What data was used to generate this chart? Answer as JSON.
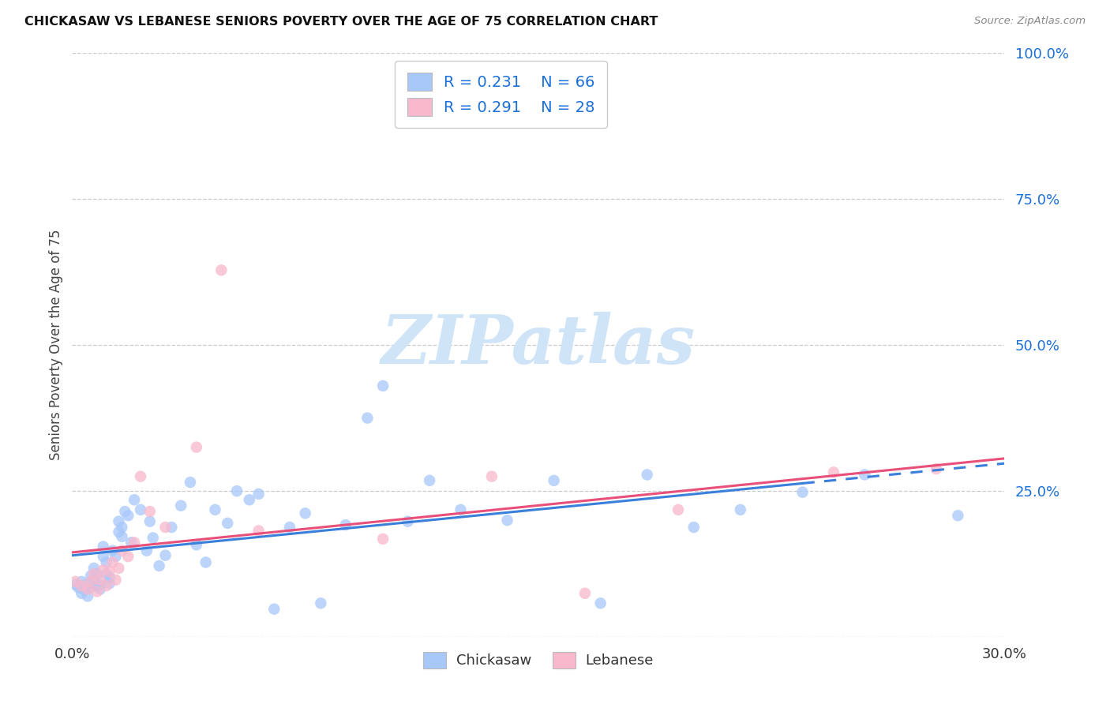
{
  "title": "CHICKASAW VS LEBANESE SENIORS POVERTY OVER THE AGE OF 75 CORRELATION CHART",
  "source": "Source: ZipAtlas.com",
  "ylabel": "Seniors Poverty Over the Age of 75",
  "xlim": [
    0.0,
    0.3
  ],
  "ylim": [
    0.0,
    1.0
  ],
  "yticks": [
    0.0,
    0.25,
    0.5,
    0.75,
    1.0
  ],
  "ytick_labels": [
    "",
    "25.0%",
    "50.0%",
    "75.0%",
    "100.0%"
  ],
  "xticks": [
    0.0,
    0.3
  ],
  "xtick_labels": [
    "0.0%",
    "30.0%"
  ],
  "chickasaw_color": "#a8c8fa",
  "lebanese_color": "#f9b8cc",
  "trend_chickasaw_color": "#3a7fd9",
  "trend_lebanese_color": "#e8507a",
  "r_chickasaw": 0.231,
  "n_chickasaw": 66,
  "r_lebanese": 0.291,
  "n_lebanese": 28,
  "legend_color": "#1a6fd8",
  "watermark_color": "#d0e4f8",
  "trend_dash_start_x": 0.235,
  "chickasaw_x": [
    0.001,
    0.002,
    0.003,
    0.003,
    0.004,
    0.005,
    0.005,
    0.006,
    0.006,
    0.007,
    0.007,
    0.008,
    0.008,
    0.009,
    0.009,
    0.01,
    0.01,
    0.011,
    0.011,
    0.012,
    0.012,
    0.013,
    0.014,
    0.015,
    0.015,
    0.016,
    0.016,
    0.017,
    0.018,
    0.019,
    0.02,
    0.022,
    0.024,
    0.025,
    0.026,
    0.028,
    0.03,
    0.032,
    0.035,
    0.038,
    0.04,
    0.043,
    0.046,
    0.05,
    0.053,
    0.057,
    0.06,
    0.065,
    0.07,
    0.075,
    0.08,
    0.088,
    0.095,
    0.1,
    0.108,
    0.115,
    0.125,
    0.14,
    0.155,
    0.17,
    0.185,
    0.2,
    0.215,
    0.235,
    0.255,
    0.285
  ],
  "chickasaw_y": [
    0.09,
    0.085,
    0.095,
    0.075,
    0.08,
    0.07,
    0.09,
    0.085,
    0.105,
    0.1,
    0.118,
    0.088,
    0.108,
    0.09,
    0.082,
    0.138,
    0.155,
    0.108,
    0.128,
    0.092,
    0.102,
    0.148,
    0.138,
    0.18,
    0.198,
    0.172,
    0.188,
    0.215,
    0.208,
    0.162,
    0.235,
    0.218,
    0.148,
    0.198,
    0.17,
    0.122,
    0.14,
    0.188,
    0.225,
    0.265,
    0.158,
    0.128,
    0.218,
    0.195,
    0.25,
    0.235,
    0.245,
    0.048,
    0.188,
    0.212,
    0.058,
    0.192,
    0.375,
    0.43,
    0.198,
    0.268,
    0.218,
    0.2,
    0.268,
    0.058,
    0.278,
    0.188,
    0.218,
    0.248,
    0.278,
    0.208
  ],
  "lebanese_x": [
    0.001,
    0.003,
    0.005,
    0.006,
    0.007,
    0.008,
    0.009,
    0.01,
    0.011,
    0.012,
    0.013,
    0.014,
    0.015,
    0.016,
    0.018,
    0.02,
    0.022,
    0.025,
    0.03,
    0.04,
    0.048,
    0.06,
    0.1,
    0.135,
    0.165,
    0.195,
    0.245,
    0.278
  ],
  "lebanese_y": [
    0.095,
    0.088,
    0.082,
    0.095,
    0.108,
    0.078,
    0.098,
    0.115,
    0.088,
    0.112,
    0.128,
    0.098,
    0.118,
    0.148,
    0.138,
    0.162,
    0.275,
    0.215,
    0.188,
    0.325,
    0.628,
    0.182,
    0.168,
    0.275,
    0.075,
    0.218,
    0.282,
    0.288
  ],
  "trend_chickasaw_intercept": 0.1,
  "trend_chickasaw_slope": 0.43,
  "trend_lebanese_intercept": 0.09,
  "trend_lebanese_slope": 1.1
}
